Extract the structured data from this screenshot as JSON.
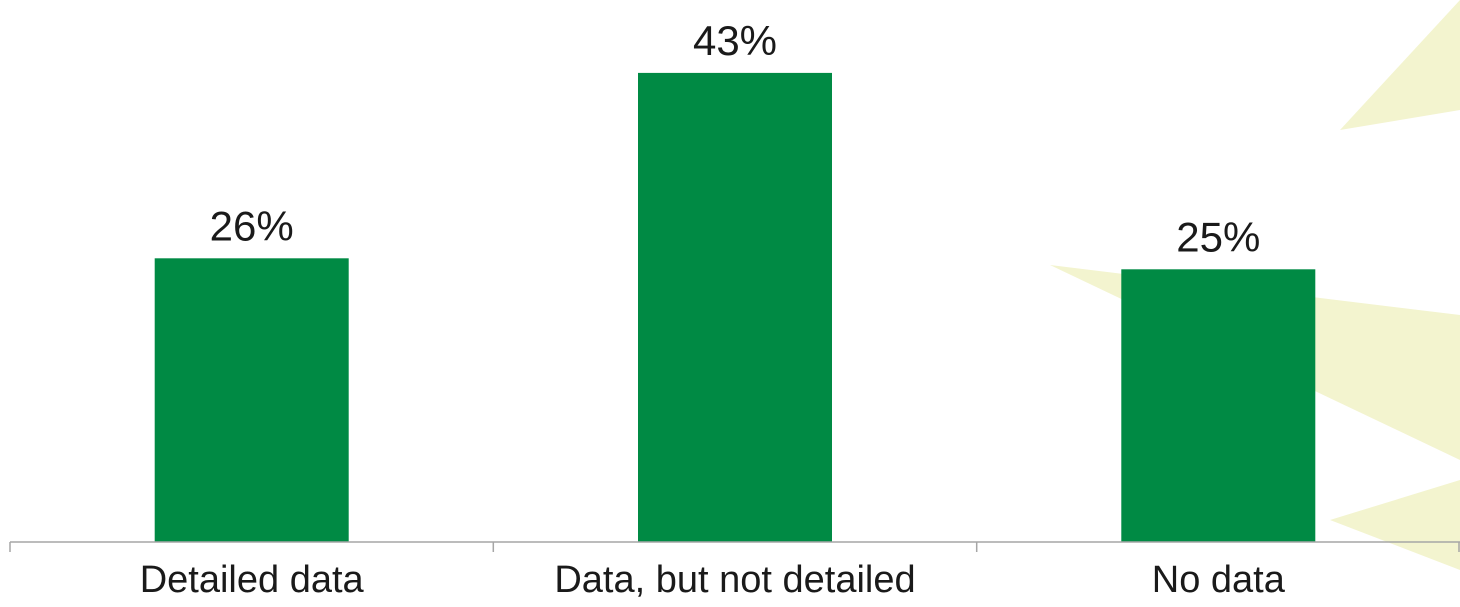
{
  "colors": {
    "bar": "#008a44",
    "axis": "#a6a6a6",
    "text": "#1a1a1a",
    "decoration": "#f3f4cf"
  },
  "chart_data": {
    "type": "bar",
    "categories": [
      "Detailed data",
      "Data, but not detailed",
      "No data"
    ],
    "values": [
      26,
      43,
      25
    ],
    "data_labels": [
      "26%",
      "43%",
      "25%"
    ],
    "title": "",
    "xlabel": "",
    "ylabel": "",
    "ylim": [
      0,
      50
    ],
    "grid": false,
    "legend": "none"
  }
}
